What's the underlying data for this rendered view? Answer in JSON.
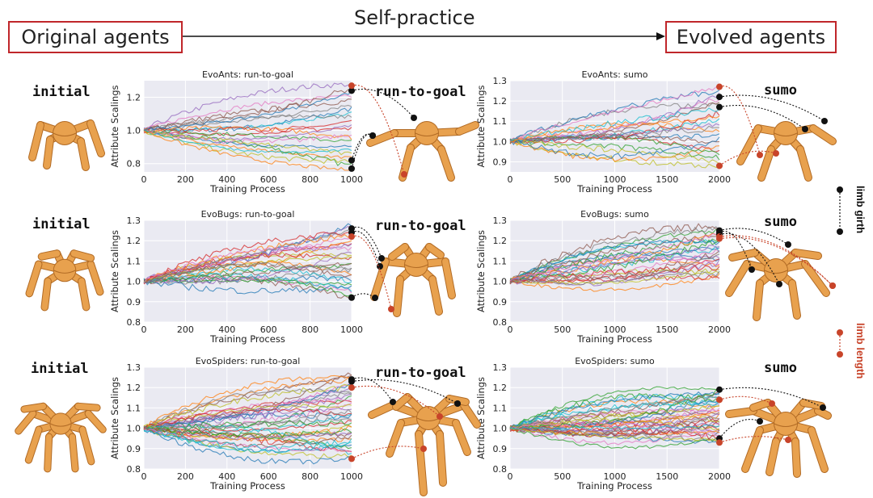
{
  "header": {
    "left_label": "Original agents",
    "center_label": "Self-practice",
    "right_label": "Evolved agents"
  },
  "rows": [
    {
      "initial_label": "initial",
      "rtg_label": "run-to-goal",
      "sumo_label": "sumo"
    },
    {
      "initial_label": "initial",
      "rtg_label": "run-to-goal",
      "sumo_label": "sumo"
    },
    {
      "initial_label": "initial",
      "rtg_label": "run-to-goal",
      "sumo_label": "sumo"
    }
  ],
  "legend": {
    "girth_label": "limb girth",
    "length_label": "limb length"
  },
  "colors": {
    "girth": "#111111",
    "length": "#c8442a",
    "frame": "#c0262a",
    "plot_bg": "#eaeaf2",
    "agent": "#e8a14e"
  },
  "chart_data": [
    {
      "type": "line",
      "title": "EvoAnts: run-to-goal",
      "xlabel": "Training Process",
      "ylabel": "Attribute Scalings",
      "xlim": [
        0,
        1000
      ],
      "ylim": [
        0.75,
        1.3
      ],
      "xticks": [
        0,
        200,
        400,
        600,
        800,
        1000
      ],
      "yticks": [
        0.8,
        1.0,
        1.2
      ],
      "grid": true,
      "series_count": 22,
      "end_range": [
        0.76,
        1.28
      ],
      "highlight_ends": {
        "limb_girth": [
          1.24,
          0.82,
          0.77
        ],
        "limb_length": [
          1.27
        ]
      }
    },
    {
      "type": "line",
      "title": "EvoBugs: run-to-goal",
      "xlabel": "Training Process",
      "ylabel": "Attribute Scalings",
      "xlim": [
        0,
        1000
      ],
      "ylim": [
        0.8,
        1.3
      ],
      "xticks": [
        0,
        200,
        400,
        600,
        800,
        1000
      ],
      "yticks": [
        0.8,
        0.9,
        1.0,
        1.1,
        1.2,
        1.3
      ],
      "grid": true,
      "series_count": 28,
      "end_range": [
        0.92,
        1.28
      ],
      "highlight_ends": {
        "limb_girth": [
          1.26,
          1.24,
          0.92
        ],
        "limb_length": [
          1.22
        ]
      }
    },
    {
      "type": "line",
      "title": "EvoSpiders: run-to-goal",
      "xlabel": "Training Process",
      "ylabel": "Attribute Scalings",
      "xlim": [
        0,
        1000
      ],
      "ylim": [
        0.8,
        1.3
      ],
      "xticks": [
        0,
        200,
        400,
        600,
        800,
        1000
      ],
      "yticks": [
        0.8,
        0.9,
        1.0,
        1.1,
        1.2,
        1.3
      ],
      "grid": true,
      "series_count": 40,
      "end_range": [
        0.85,
        1.27
      ],
      "highlight_ends": {
        "limb_girth": [
          1.24,
          1.23
        ],
        "limb_length": [
          1.2,
          0.85
        ]
      }
    },
    {
      "type": "line",
      "title": "EvoAnts: sumo",
      "xlabel": "Training Process",
      "ylabel": "Attribute Scalings",
      "xlim": [
        0,
        2000
      ],
      "ylim": [
        0.85,
        1.3
      ],
      "xticks": [
        0,
        500,
        1000,
        1500,
        2000
      ],
      "yticks": [
        0.9,
        1.0,
        1.1,
        1.2,
        1.3
      ],
      "grid": true,
      "series_count": 22,
      "end_range": [
        0.88,
        1.27
      ],
      "highlight_ends": {
        "limb_girth": [
          1.22,
          1.17
        ],
        "limb_length": [
          1.27,
          0.88
        ]
      }
    },
    {
      "type": "line",
      "title": "EvoBugs: sumo",
      "xlabel": "Training Process",
      "ylabel": "Attribute Scalings",
      "xlim": [
        0,
        2000
      ],
      "ylim": [
        0.8,
        1.3
      ],
      "xticks": [
        0,
        500,
        1000,
        1500,
        2000
      ],
      "yticks": [
        0.8,
        0.9,
        1.0,
        1.1,
        1.2,
        1.3
      ],
      "grid": true,
      "series_count": 28,
      "end_range": [
        1.02,
        1.27
      ],
      "highlight_ends": {
        "limb_girth": [
          1.25,
          1.24,
          1.23
        ],
        "limb_length": [
          1.22,
          1.21
        ]
      }
    },
    {
      "type": "line",
      "title": "EvoSpiders: sumo",
      "xlabel": "Training Process",
      "ylabel": "Attribute Scalings",
      "xlim": [
        0,
        2000
      ],
      "ylim": [
        0.8,
        1.3
      ],
      "xticks": [
        0,
        500,
        1000,
        1500,
        2000
      ],
      "yticks": [
        0.8,
        0.9,
        1.0,
        1.1,
        1.2,
        1.3
      ],
      "grid": true,
      "series_count": 40,
      "end_range": [
        0.93,
        1.19
      ],
      "highlight_ends": {
        "limb_girth": [
          1.19,
          0.95
        ],
        "limb_length": [
          1.14,
          0.93
        ]
      }
    }
  ]
}
